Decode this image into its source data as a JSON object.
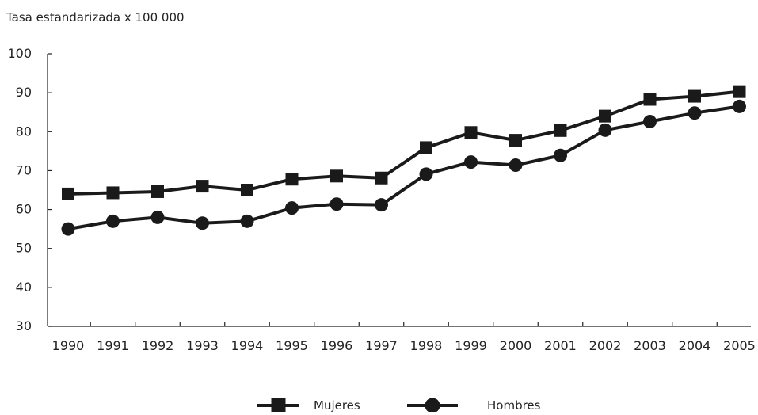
{
  "chart_data": {
    "type": "line",
    "title": "",
    "ylabel": "Tasa estandarizada x 100 000",
    "xlabel": "",
    "categories": [
      "1990",
      "1991",
      "1992",
      "1993",
      "1994",
      "1995",
      "1996",
      "1997",
      "1998",
      "1999",
      "2000",
      "2001",
      "2002",
      "2003",
      "2004",
      "2005"
    ],
    "ylim": [
      30,
      100
    ],
    "yticks": [
      30,
      40,
      50,
      60,
      70,
      80,
      90,
      100
    ],
    "grid": false,
    "legend_position": "bottom-center",
    "series": [
      {
        "name": "Mujeres",
        "marker": "square",
        "color": "#1a1a1a",
        "values": [
          64.0,
          64.3,
          64.6,
          66.0,
          65.0,
          67.8,
          68.6,
          68.1,
          75.9,
          79.8,
          77.8,
          80.3,
          84.0,
          88.3,
          89.1,
          90.3
        ]
      },
      {
        "name": "Hombres",
        "marker": "circle",
        "color": "#1a1a1a",
        "values": [
          55.0,
          57.0,
          58.0,
          56.5,
          57.0,
          60.4,
          61.4,
          61.2,
          69.1,
          72.2,
          71.4,
          73.9,
          80.4,
          82.6,
          84.8,
          86.5
        ]
      }
    ]
  }
}
